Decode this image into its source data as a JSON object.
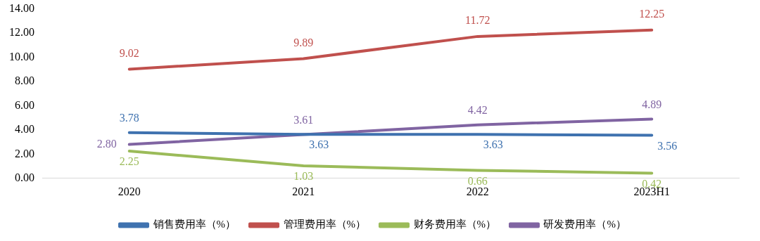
{
  "chart_data": {
    "type": "line",
    "categories": [
      "2020",
      "2021",
      "2022",
      "2023H1"
    ],
    "series": [
      {
        "name": "销售费用率（%）",
        "color": "#3f72af",
        "values": [
          3.78,
          3.63,
          3.63,
          3.56
        ],
        "value_labels": [
          "3.78",
          "3.63",
          "3.63",
          "3.56"
        ]
      },
      {
        "name": "管理费用率（%）",
        "color": "#c0504d",
        "values": [
          9.02,
          9.89,
          11.72,
          12.25
        ],
        "value_labels": [
          "9.02",
          "9.89",
          "11.72",
          "12.25"
        ]
      },
      {
        "name": "财务费用率（%）",
        "color": "#9bbb59",
        "values": [
          2.25,
          1.03,
          0.66,
          0.42
        ],
        "value_labels": [
          "2.25",
          "1.03",
          "0.66",
          "0.42"
        ]
      },
      {
        "name": "研发费用率（%）",
        "color": "#8064a2",
        "values": [
          2.8,
          3.61,
          4.42,
          4.89
        ],
        "value_labels": [
          "2.80",
          "3.61",
          "4.42",
          "4.89"
        ]
      }
    ],
    "ylim": [
      0,
      14
    ],
    "yticks": [
      {
        "value": 0,
        "label": "0.00"
      },
      {
        "value": 2,
        "label": "2.00"
      },
      {
        "value": 4,
        "label": "4.00"
      },
      {
        "value": 6,
        "label": "6.00"
      },
      {
        "value": 8,
        "label": "8.00"
      },
      {
        "value": 10,
        "label": "10.00"
      },
      {
        "value": 12,
        "label": "12.00"
      },
      {
        "value": 14,
        "label": "14.00"
      }
    ],
    "legend": "bottom",
    "grid": false,
    "marker": "none",
    "line_style": "solid"
  }
}
